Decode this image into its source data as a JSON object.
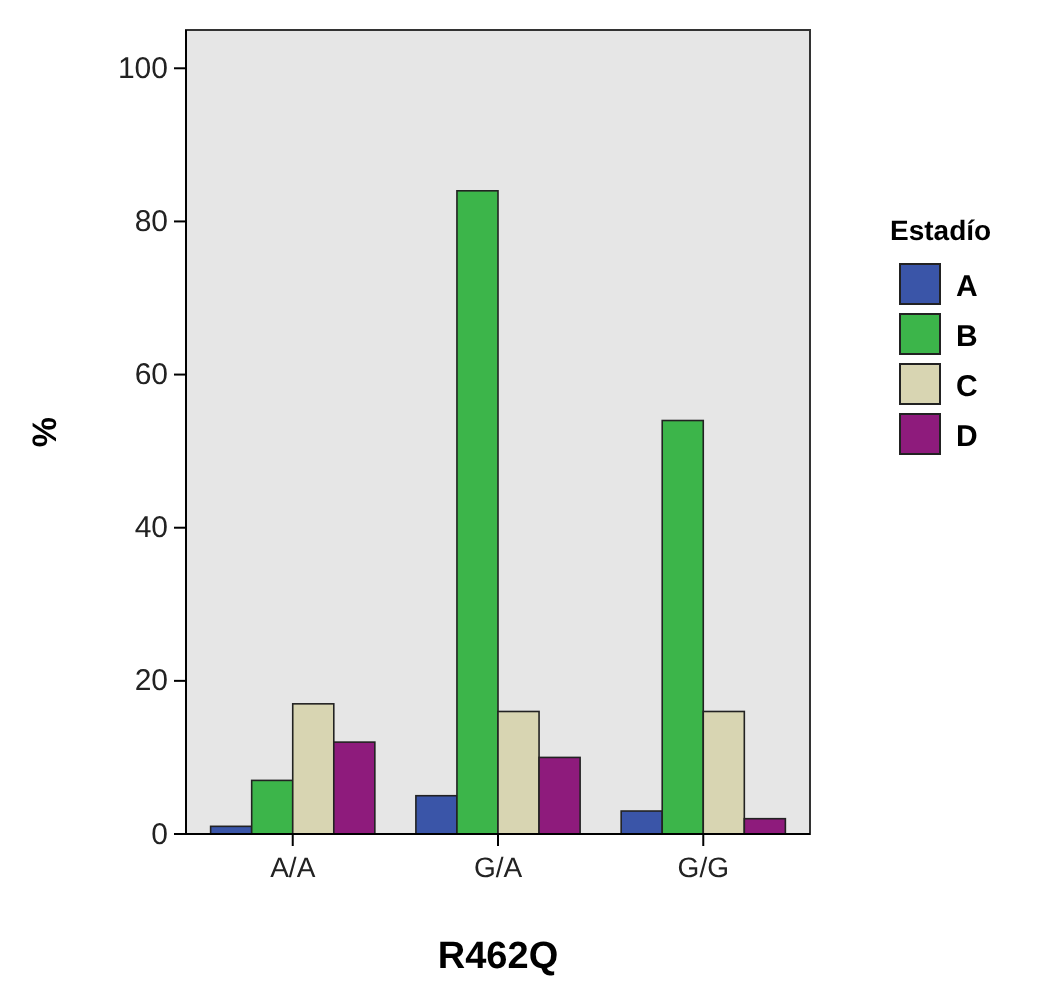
{
  "chart_data": {
    "type": "bar",
    "xlabel": "R462Q",
    "ylabel": "%",
    "legend_title": "Estadío",
    "categories": [
      "A/A",
      "G/A",
      "G/G"
    ],
    "series": [
      {
        "name": "A",
        "color": "#3a55a8",
        "values": [
          1,
          5,
          3
        ]
      },
      {
        "name": "B",
        "color": "#3cb54a",
        "values": [
          7,
          84,
          54
        ]
      },
      {
        "name": "C",
        "color": "#d8d5b2",
        "values": [
          17,
          16,
          16
        ]
      },
      {
        "name": "D",
        "color": "#8e1b7c",
        "values": [
          12,
          10,
          2
        ]
      }
    ],
    "ylim": [
      0,
      105
    ],
    "yticks": [
      0,
      20,
      40,
      60,
      80,
      100
    ],
    "grid": false,
    "legend": "right"
  }
}
